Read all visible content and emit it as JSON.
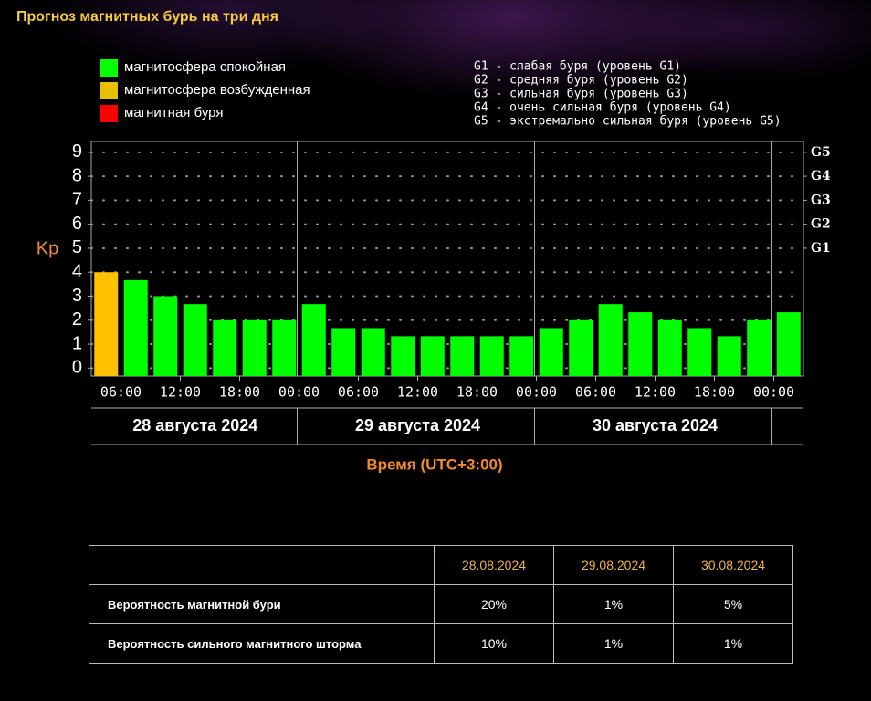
{
  "chart_data": {
    "type": "bar",
    "title": "Прогноз магнитных бурь на три дня",
    "y_label": "Kp",
    "x_label": "Время (UTC+3:00)",
    "legend": [
      {
        "name": "магнитосфера спокойная",
        "color": "#00ff00"
      },
      {
        "name": "магнитосфера возбужденная",
        "color": "#e8c000"
      },
      {
        "name": "магнитная буря",
        "color": "#ff0000"
      }
    ],
    "g_levels": [
      "G1 - слабая буря (уровень G1)",
      "G2 - средняя буря (уровень G2)",
      "G3 - сильная буря (уровень G3)",
      "G4 - очень сильная буря (уровень G4)",
      "G5 - экстремально сильная буря (уровень G5)"
    ],
    "values": [
      4,
      3.67,
      3,
      2.67,
      2,
      2,
      2,
      2.67,
      1.67,
      1.67,
      1.33,
      1.33,
      1.33,
      1.33,
      1.33,
      1.67,
      2,
      2.67,
      2.33,
      2,
      1.67,
      1.33,
      2,
      2.33
    ],
    "colors": [
      "#ffc000",
      "#00ff00",
      "#00ff00",
      "#00ff00",
      "#00ff00",
      "#00ff00",
      "#00ff00",
      "#00ff00",
      "#00ff00",
      "#00ff00",
      "#00ff00",
      "#00ff00",
      "#00ff00",
      "#00ff00",
      "#00ff00",
      "#00ff00",
      "#00ff00",
      "#00ff00",
      "#00ff00",
      "#00ff00",
      "#00ff00",
      "#00ff00",
      "#00ff00",
      "#00ff00"
    ],
    "xticks": [
      "06:00",
      "12:00",
      "18:00",
      "00:00",
      "06:00",
      "12:00",
      "18:00",
      "00:00",
      "06:00",
      "12:00",
      "18:00",
      "00:00"
    ],
    "days": [
      "28 августа 2024",
      "29 августа 2024",
      "30 августа 2024"
    ],
    "ylim": [
      -0.33,
      9.45
    ],
    "yticks": [
      0,
      1,
      2,
      3,
      4,
      5,
      6,
      7,
      8,
      9
    ],
    "y2ticks": [
      {
        "value": 5,
        "label": "G1"
      },
      {
        "value": 6,
        "label": "G2"
      },
      {
        "value": 7,
        "label": "G3"
      },
      {
        "value": 8,
        "label": "G4"
      },
      {
        "value": 9,
        "label": "G5"
      }
    ],
    "grid": true
  },
  "table": {
    "header": [
      "28.08.2024",
      "29.08.2024",
      "30.08.2024"
    ],
    "rows": [
      {
        "label": "Вероятность магнитной бури",
        "values": [
          "20%",
          "1%",
          "5%"
        ]
      },
      {
        "label": "Вероятность сильного магнитного шторма",
        "values": [
          "10%",
          "1%",
          "1%"
        ]
      }
    ]
  }
}
